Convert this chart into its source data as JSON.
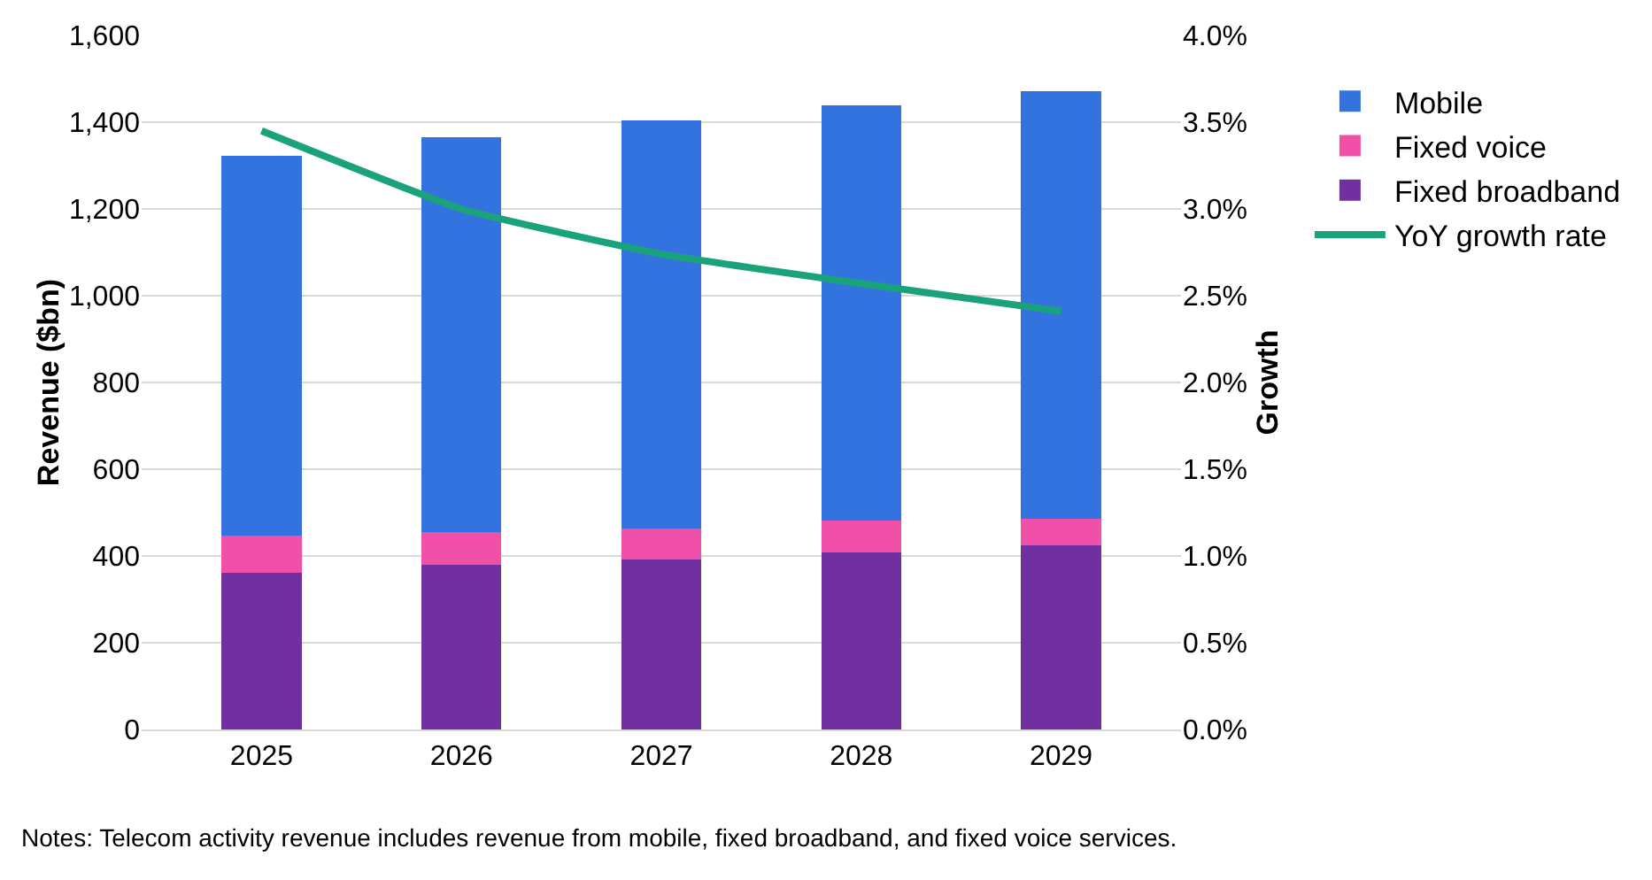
{
  "chart_data": {
    "type": "bar",
    "stacked": true,
    "categories": [
      "2025",
      "2026",
      "2027",
      "2028",
      "2029"
    ],
    "ylabel": "Revenue ($bn)",
    "y2label": "Growth",
    "series": [
      {
        "name": "Fixed broadband",
        "color": "#7030a0",
        "values": [
          362,
          379,
          391,
          408,
          425
        ]
      },
      {
        "name": "Fixed voice",
        "color": "#f050a8",
        "values": [
          85,
          76,
          73,
          73,
          60
        ]
      },
      {
        "name": "Mobile",
        "color": "#3373e0",
        "values": [
          876,
          911,
          940,
          957,
          987
        ]
      },
      {
        "name": "YoY growth rate",
        "type": "line",
        "axis": "y2",
        "color": "#1aa37a",
        "values": [
          3.45,
          3.0,
          2.74,
          2.57,
          2.41
        ]
      }
    ],
    "ylim": [
      0,
      1600
    ],
    "yticks": [
      0,
      200,
      400,
      600,
      800,
      {
        "value": 1000,
        "label": "1,000"
      },
      {
        "value": 1200,
        "label": "1,200"
      },
      {
        "value": 1400,
        "label": "1,400"
      },
      {
        "value": 1600,
        "label": "1,600"
      }
    ],
    "y2lim": [
      0,
      4
    ],
    "y2ticks": [
      {
        "value": 0,
        "label": "0.0%"
      },
      {
        "value": 0.5,
        "label": "0.5%"
      },
      {
        "value": 1,
        "label": "1.0%"
      },
      {
        "value": 1.5,
        "label": "1.5%"
      },
      {
        "value": 2,
        "label": "2.0%"
      },
      {
        "value": 2.5,
        "label": "2.5%"
      },
      {
        "value": 3,
        "label": "3.0%"
      },
      {
        "value": 3.5,
        "label": "3.5%"
      },
      {
        "value": 4,
        "label": "4.0%"
      }
    ],
    "grid": "y",
    "legend": "right",
    "annotations": [
      "Notes: Telecom activity revenue includes revenue from mobile, fixed broadband, and fixed voice services."
    ]
  }
}
